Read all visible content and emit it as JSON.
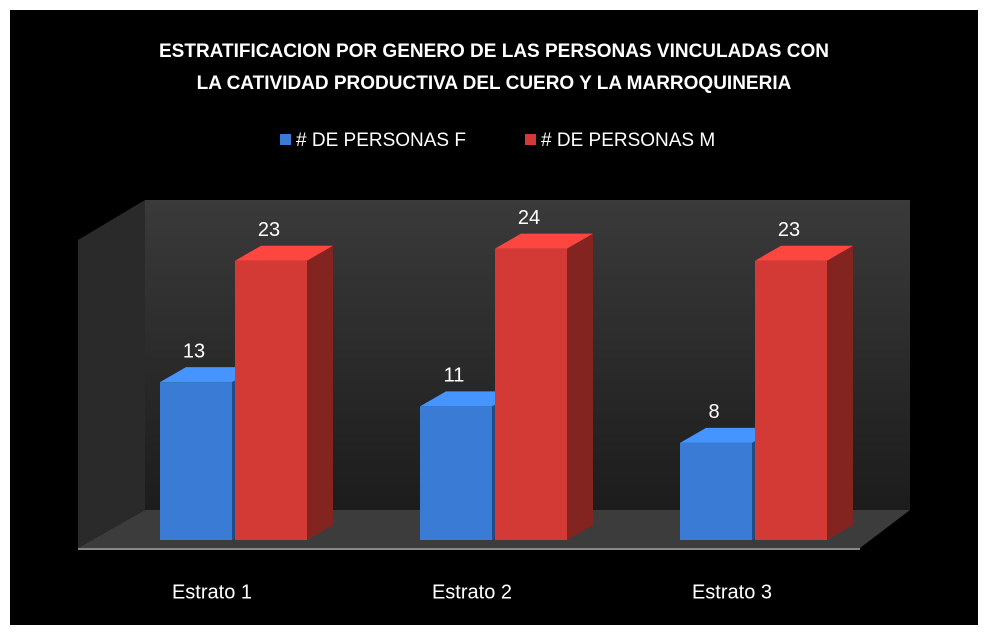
{
  "chart_data": {
    "type": "bar3d",
    "title": [
      "ESTRATIFICACION POR GENERO DE LAS PERSONAS VINCULADAS CON",
      "LA CATIVIDAD PRODUCTIVA DEL CUERO Y LA MARROQUINERIA"
    ],
    "categories": [
      "Estrato 1",
      "Estrato 2",
      "Estrato 3"
    ],
    "series": [
      {
        "name": "# DE PERSONAS F",
        "color": "#3a7bd5",
        "values": [
          13,
          11,
          8
        ]
      },
      {
        "name": "# DE PERSONAS M",
        "color": "#d33a35",
        "values": [
          23,
          24,
          23
        ]
      }
    ],
    "ylim": [
      0,
      28
    ],
    "legend": "top"
  }
}
